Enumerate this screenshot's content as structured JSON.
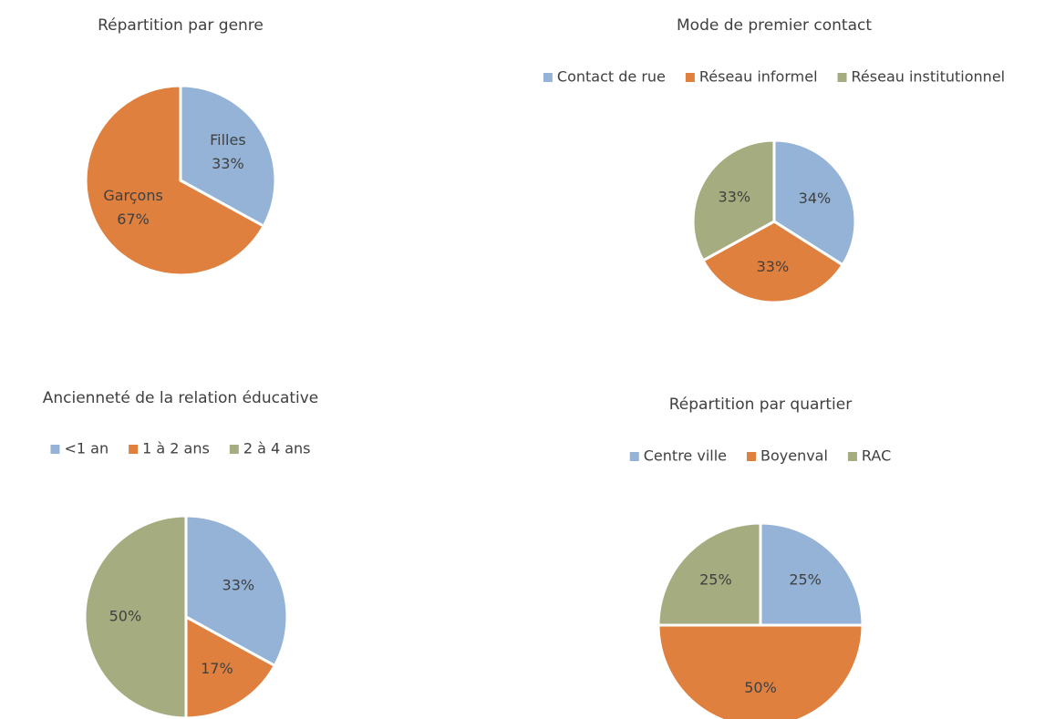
{
  "chart_data": [
    {
      "type": "pie",
      "title": "Répartition par genre",
      "categories": [
        "Filles",
        "Garçons"
      ],
      "values": [
        33,
        67
      ],
      "value_labels": [
        "33%",
        "67%"
      ],
      "colors": [
        "#95B3D7",
        "#E0803F"
      ],
      "legend": false,
      "slice_labels_show_category": true
    },
    {
      "type": "pie",
      "title": "Mode de premier contact",
      "categories": [
        "Contact de rue",
        "Réseau informel",
        "Réseau institutionnel"
      ],
      "values": [
        34,
        33,
        33
      ],
      "value_labels": [
        "34%",
        "33%",
        "33%"
      ],
      "colors": [
        "#95B3D7",
        "#E0803F",
        "#A5AC80"
      ],
      "legend": "top"
    },
    {
      "type": "pie",
      "title": "Ancienneté de la relation éducative",
      "categories": [
        "<1 an",
        "1 à 2 ans",
        "2 à 4 ans"
      ],
      "values": [
        33,
        17,
        50
      ],
      "value_labels": [
        "33%",
        "17%",
        "50%"
      ],
      "colors": [
        "#95B3D7",
        "#E0803F",
        "#A5AC80"
      ],
      "legend": "top"
    },
    {
      "type": "pie",
      "title": "Répartition par quartier",
      "categories": [
        "Centre ville",
        "Boyenval",
        "RAC"
      ],
      "values": [
        25,
        50,
        25
      ],
      "value_labels": [
        "25%",
        "50%",
        "25%"
      ],
      "colors": [
        "#95B3D7",
        "#E0803F",
        "#A5AC80"
      ],
      "legend": "top"
    }
  ]
}
